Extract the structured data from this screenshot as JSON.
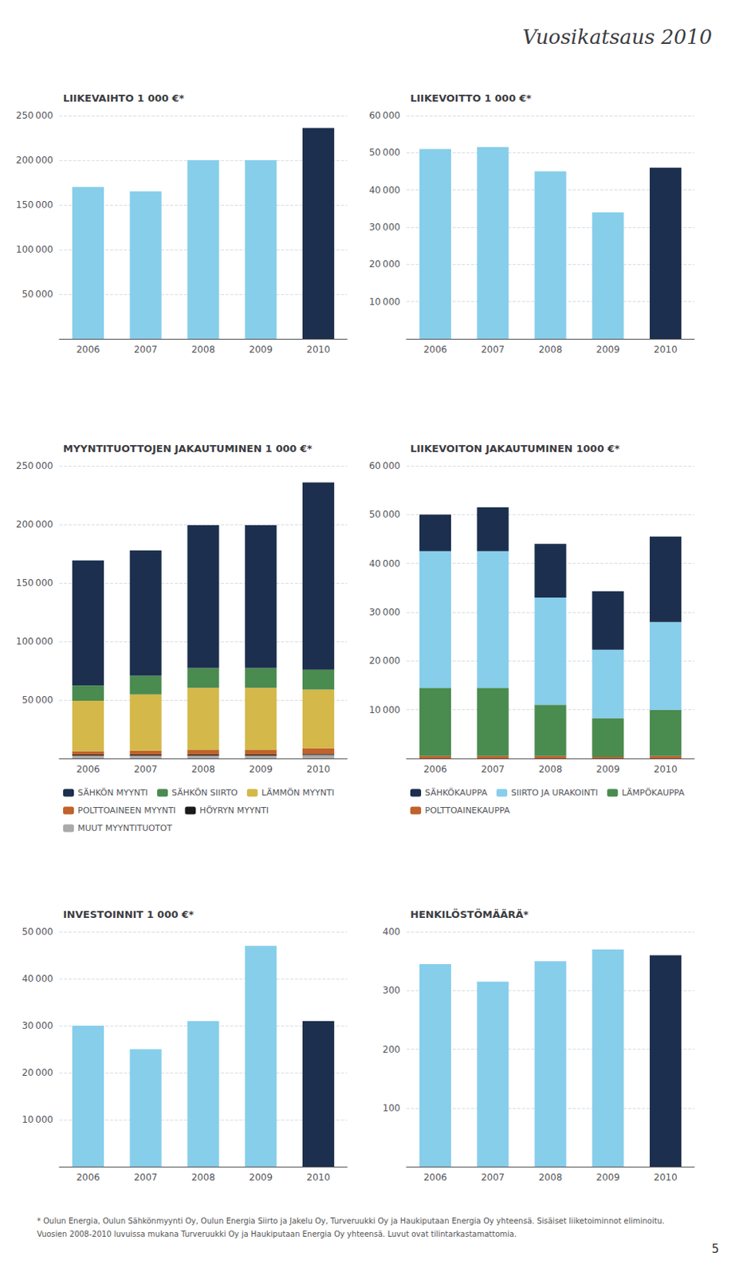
{
  "title": "Vuosikatsaus 2010",
  "annotations": [
    "* Oulun Energia, Oulun Sähkönmyynti Oy, Oulun Energia Siirto ja Jakelu Oy, Turveruukki Oy ja Haukiputaan Energia Oy yhteensä. Sisäiset liiketoiminnot eliminoitu.",
    "Vuosien 2008-2010 luvuissa mukana Turveruukki Oy ja Haukiputaan Energia Oy yhteensä. Luvut ovat tilintarkastamattomia.",
    "5"
  ],
  "chart_data": [
    {
      "type": "bar",
      "title": "LIIKEVAIHTO 1 000 €*",
      "categories": [
        "2006",
        "2007",
        "2008",
        "2009",
        "2010"
      ],
      "values": [
        170000,
        165000,
        200000,
        200000,
        236000
      ],
      "colors": [
        "#87CEEB",
        "#87CEEB",
        "#87CEEB",
        "#87CEEB",
        "#1C2F4E"
      ],
      "ylim": [
        0,
        250000
      ],
      "yticks": [
        {
          "value": 50000,
          "label": "50 000"
        },
        {
          "value": 100000,
          "label": "100 000"
        },
        {
          "value": 150000,
          "label": "150 000"
        },
        {
          "value": 200000,
          "label": "200 000"
        },
        {
          "value": 250000,
          "label": "250 000"
        }
      ],
      "grid": true
    },
    {
      "type": "bar",
      "title": "LIIKEVOITTO 1 000 €*",
      "categories": [
        "2006",
        "2007",
        "2008",
        "2009",
        "2010"
      ],
      "values": [
        51000,
        51500,
        45000,
        34000,
        46000
      ],
      "colors": [
        "#87CEEB",
        "#87CEEB",
        "#87CEEB",
        "#87CEEB",
        "#1C2F4E"
      ],
      "ylim": [
        0,
        60000
      ],
      "yticks": [
        {
          "value": 10000,
          "label": "10 000"
        },
        {
          "value": 20000,
          "label": "20 000"
        },
        {
          "value": 30000,
          "label": "30 000"
        },
        {
          "value": 40000,
          "label": "40 000"
        },
        {
          "value": 50000,
          "label": "50 000"
        },
        {
          "value": 60000,
          "label": "60 000"
        }
      ],
      "grid": true
    },
    {
      "type": "bar",
      "title": "MYYNTITUOTTOJEN JAKAUTUMINEN 1 000 €*",
      "stacked": true,
      "legend": "bottom",
      "categories": [
        "2006",
        "2007",
        "2008",
        "2009",
        "2010"
      ],
      "series": [
        {
          "name": "MUUT MYYNTITUOTOT",
          "color": "#AAAAAA",
          "values": [
            2500,
            2500,
            2500,
            2500,
            3000
          ]
        },
        {
          "name": "HÖYRYN MYYNTI",
          "color": "#1A1A1A",
          "values": [
            800,
            800,
            800,
            800,
            800
          ]
        },
        {
          "name": "POLTTOAINEEN MYYNTI",
          "color": "#C0622B",
          "values": [
            3000,
            3500,
            4000,
            4000,
            5000
          ]
        },
        {
          "name": "LÄMMÖN MYYNTI",
          "color": "#D4B84A",
          "values": [
            43000,
            48000,
            53000,
            53000,
            50000
          ]
        },
        {
          "name": "SÄHKÖN SIIRTO",
          "color": "#4A8B4F",
          "values": [
            13000,
            16000,
            17000,
            17000,
            17000
          ]
        },
        {
          "name": "SÄHKÖN MYYNTI",
          "color": "#1C2F4E",
          "values": [
            107000,
            107000,
            122000,
            122000,
            160000
          ]
        }
      ],
      "ylim": [
        0,
        250000
      ],
      "yticks": [
        {
          "value": 50000,
          "label": "50 000"
        },
        {
          "value": 100000,
          "label": "100 000"
        },
        {
          "value": 150000,
          "label": "150 000"
        },
        {
          "value": 200000,
          "label": "200 000"
        },
        {
          "value": 250000,
          "label": "250 000"
        }
      ],
      "grid": true
    },
    {
      "type": "bar",
      "title": "LIIKEVOITON JAKAUTUMINEN 1000 €*",
      "stacked": true,
      "legend": "bottom",
      "categories": [
        "2006",
        "2007",
        "2008",
        "2009",
        "2010"
      ],
      "series": [
        {
          "name": "POLTTOAINEKAUPPA",
          "color": "#C0622B",
          "values": [
            500,
            500,
            500,
            300,
            500
          ]
        },
        {
          "name": "LÄMPÖKAUPPA",
          "color": "#4A8B4F",
          "values": [
            14000,
            14000,
            10500,
            8000,
            9500
          ]
        },
        {
          "name": "SIIRTO JA URAKOINTI",
          "color": "#87CEEB",
          "values": [
            28000,
            28000,
            22000,
            14000,
            18000
          ]
        },
        {
          "name": "SÄHKÖKAUPPA",
          "color": "#1C2F4E",
          "values": [
            7500,
            9000,
            11000,
            12000,
            17500
          ]
        }
      ],
      "ylim": [
        0,
        60000
      ],
      "yticks": [
        {
          "value": 10000,
          "label": "10 000"
        },
        {
          "value": 20000,
          "label": "20 000"
        },
        {
          "value": 30000,
          "label": "30 000"
        },
        {
          "value": 40000,
          "label": "40 000"
        },
        {
          "value": 50000,
          "label": "50 000"
        },
        {
          "value": 60000,
          "label": "60 000"
        }
      ],
      "grid": true
    },
    {
      "type": "bar",
      "title": "INVESTOINNIT 1 000 €*",
      "categories": [
        "2006",
        "2007",
        "2008",
        "2009",
        "2010"
      ],
      "values": [
        30000,
        25000,
        31000,
        47000,
        31000
      ],
      "colors": [
        "#87CEEB",
        "#87CEEB",
        "#87CEEB",
        "#87CEEB",
        "#1C2F4E"
      ],
      "ylim": [
        0,
        50000
      ],
      "yticks": [
        {
          "value": 10000,
          "label": "10 000"
        },
        {
          "value": 20000,
          "label": "20 000"
        },
        {
          "value": 30000,
          "label": "30 000"
        },
        {
          "value": 40000,
          "label": "40 000"
        },
        {
          "value": 50000,
          "label": "50 000"
        }
      ],
      "grid": true
    },
    {
      "type": "bar",
      "title": "HENKILÖSTÖMÄÄRÄ*",
      "categories": [
        "2006",
        "2007",
        "2008",
        "2009",
        "2010"
      ],
      "values": [
        345,
        315,
        350,
        370,
        360
      ],
      "colors": [
        "#87CEEB",
        "#87CEEB",
        "#87CEEB",
        "#87CEEB",
        "#1C2F4E"
      ],
      "ylim": [
        0,
        400
      ],
      "yticks": [
        100,
        200,
        300,
        400
      ],
      "grid": true
    }
  ]
}
